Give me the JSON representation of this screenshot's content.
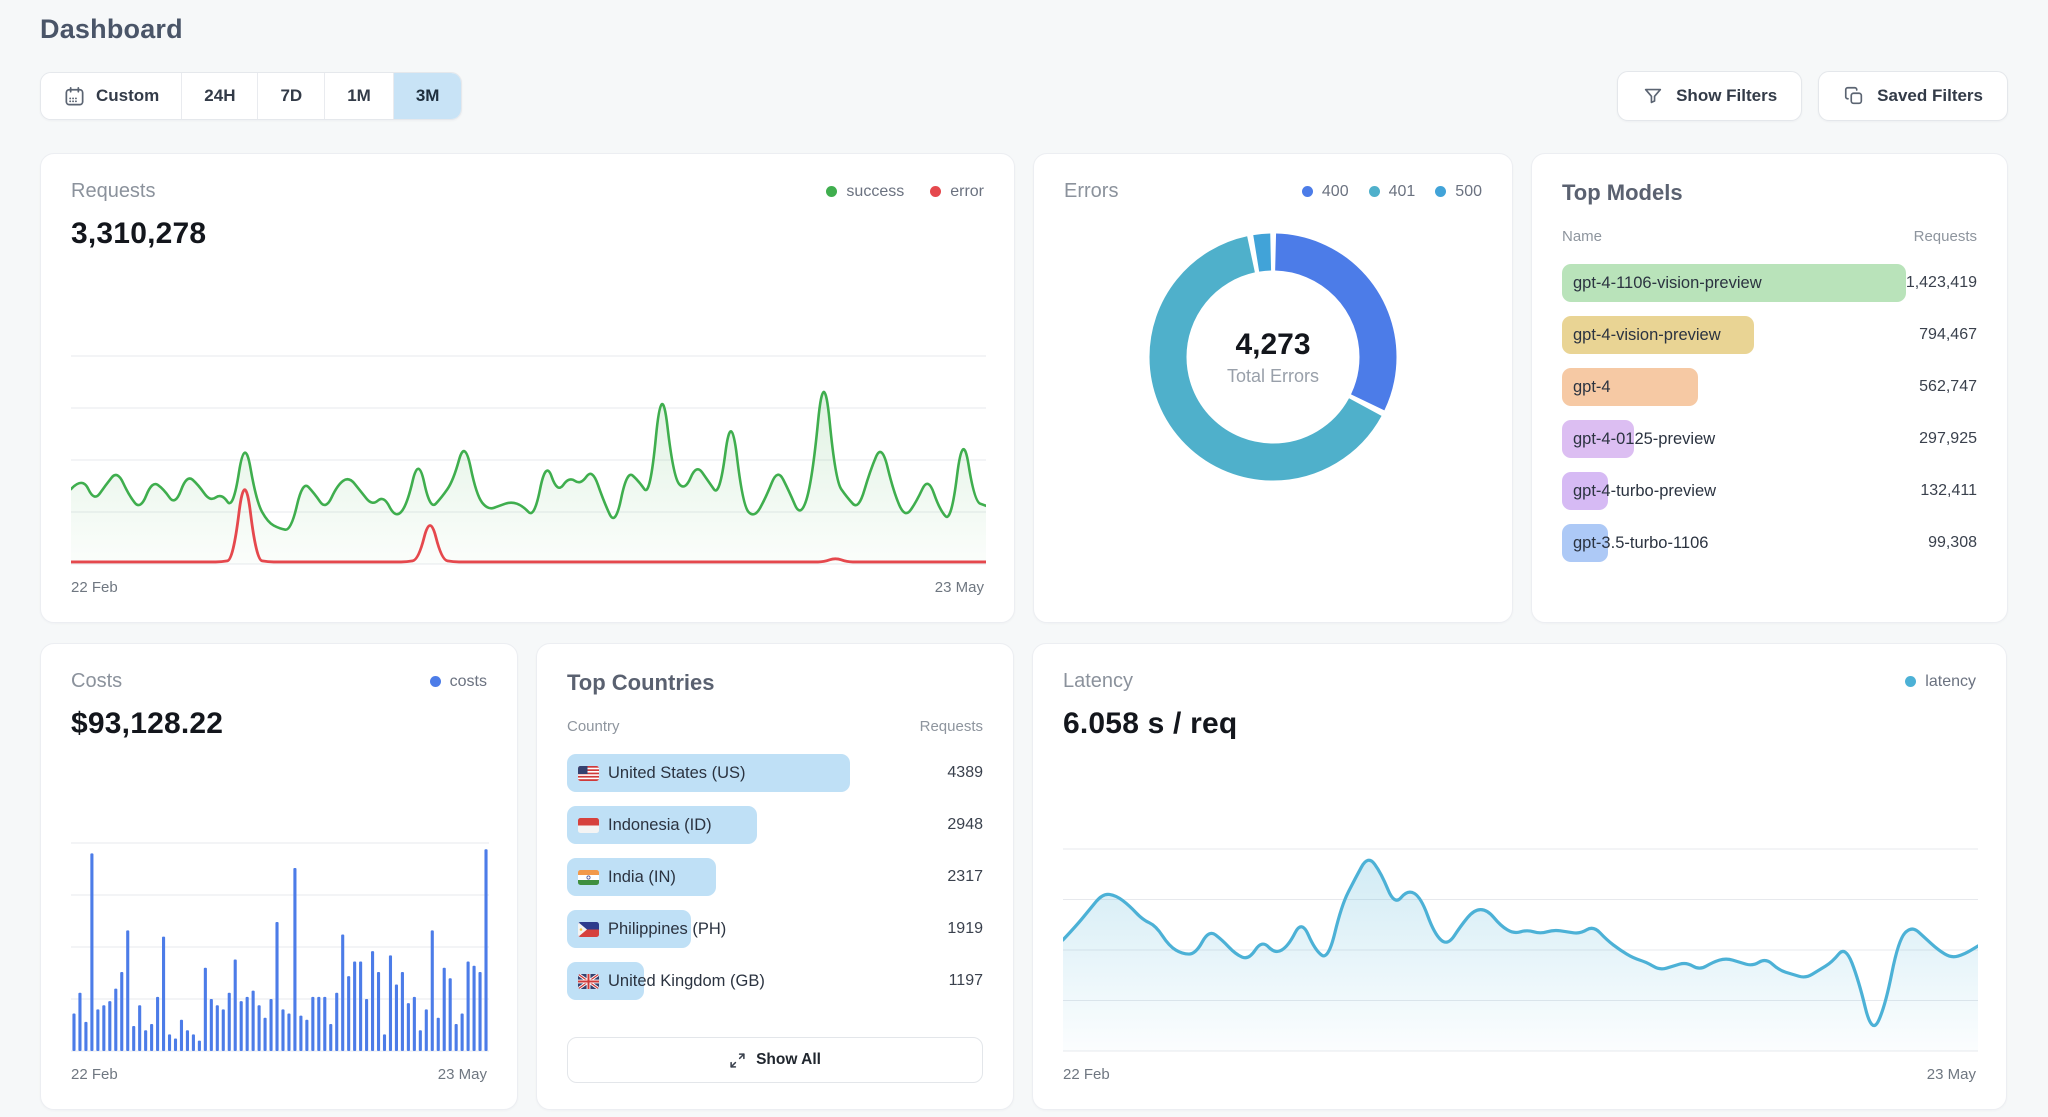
{
  "page": {
    "title": "Dashboard",
    "background": "#f6f8f9"
  },
  "toolbar": {
    "time_filters": [
      {
        "label": "Custom",
        "icon": "calendar-icon",
        "selected": false
      },
      {
        "label": "24H",
        "selected": false
      },
      {
        "label": "7D",
        "selected": false
      },
      {
        "label": "1M",
        "selected": false
      },
      {
        "label": "3M",
        "selected": true
      }
    ],
    "selected_color": "#c8e3f6",
    "show_filters": {
      "label": "Show Filters",
      "icon": "funnel-icon"
    },
    "saved_filters": {
      "label": "Saved Filters",
      "icon": "copy-icon"
    }
  },
  "cards": {
    "requests": {
      "title": "Requests",
      "value": "3,310,278",
      "legend": [
        {
          "label": "success",
          "color": "#3fae4e"
        },
        {
          "label": "error",
          "color": "#e5484d"
        }
      ],
      "x_start": "22 Feb",
      "x_end": "23 May"
    },
    "errors": {
      "title": "Errors",
      "legend": [
        {
          "label": "400",
          "color": "#4c7ce8"
        },
        {
          "label": "401",
          "color": "#4fb0cb"
        },
        {
          "label": "500",
          "color": "#41a3d8"
        }
      ],
      "center_value": "4,273",
      "center_label": "Total Errors"
    },
    "top_models": {
      "title": "Top Models",
      "col_name": "Name",
      "col_requests": "Requests",
      "rows": [
        {
          "name": "gpt-4-1106-vision-preview",
          "requests": "1,423,419",
          "color": "#b9e3ba"
        },
        {
          "name": "gpt-4-vision-preview",
          "requests": "794,467",
          "color": "#e9d494"
        },
        {
          "name": "gpt-4",
          "requests": "562,747",
          "color": "#f6c9a4"
        },
        {
          "name": "gpt-4-0125-preview",
          "requests": "297,925",
          "color": "#dcbef2"
        },
        {
          "name": "gpt-4-turbo-preview",
          "requests": "132,411",
          "color": "#d6baf4"
        },
        {
          "name": "gpt-3.5-turbo-1106",
          "requests": "99,308",
          "color": "#adc9f6"
        }
      ]
    },
    "costs": {
      "title": "Costs",
      "value": "$93,128.22",
      "legend": [
        {
          "label": "costs",
          "color": "#4c7ce8"
        }
      ],
      "x_start": "22 Feb",
      "x_end": "23 May"
    },
    "top_countries": {
      "title": "Top Countries",
      "col_country": "Country",
      "col_requests": "Requests",
      "pill_color": "#bfe0f6",
      "rows": [
        {
          "country": "United States (US)",
          "flag": "us-flag",
          "requests": "4389"
        },
        {
          "country": "Indonesia (ID)",
          "flag": "id-flag",
          "requests": "2948"
        },
        {
          "country": "India (IN)",
          "flag": "in-flag",
          "requests": "2317"
        },
        {
          "country": "Philippines (PH)",
          "flag": "ph-flag",
          "requests": "1919"
        },
        {
          "country": "United Kingdom (GB)",
          "flag": "gb-flag",
          "requests": "1197"
        }
      ],
      "show_all_label": "Show All"
    },
    "latency": {
      "title": "Latency",
      "value": "6.058 s / req",
      "legend": [
        {
          "label": "latency",
          "color": "#4cb1d6"
        }
      ],
      "x_start": "22 Feb",
      "x_end": "23 May"
    }
  },
  "chart_data": {
    "requests": {
      "type": "line",
      "title": "Requests",
      "x_range": [
        "22 Feb",
        "23 May"
      ],
      "ylabel": "",
      "units": "relative height 0-100 (chart shows no y-axis labels)",
      "grid": true,
      "legend_position": "top-right",
      "series": [
        {
          "name": "success",
          "color": "#3fae4e",
          "values": [
            36,
            42,
            30,
            38,
            45,
            33,
            26,
            40,
            36,
            28,
            43,
            38,
            30,
            34,
            26,
            62,
            30,
            20,
            17,
            16,
            40,
            34,
            26,
            38,
            42,
            35,
            28,
            33,
            22,
            28,
            52,
            26,
            32,
            40,
            60,
            33,
            26,
            28,
            30,
            28,
            22,
            50,
            34,
            42,
            38,
            46,
            30,
            18,
            45,
            40,
            32,
            90,
            42,
            35,
            48,
            40,
            32,
            75,
            28,
            22,
            32,
            46,
            35,
            22,
            40,
            97,
            40,
            32,
            26,
            45,
            58,
            35,
            22,
            30,
            42,
            26,
            20,
            65,
            30,
            28
          ]
        },
        {
          "name": "error",
          "color": "#e5484d",
          "values": [
            1,
            1,
            1,
            1,
            1,
            1,
            1,
            1,
            1,
            1,
            1,
            1,
            1,
            1,
            2,
            47,
            2,
            1,
            1,
            1,
            1,
            1,
            1,
            1,
            1,
            1,
            1,
            1,
            1,
            1,
            2,
            24,
            2,
            1,
            1,
            1,
            1,
            1,
            1,
            1,
            1,
            1,
            1,
            1,
            1,
            1,
            1,
            1,
            1,
            1,
            1,
            1,
            1,
            1,
            1,
            1,
            1,
            1,
            1,
            1,
            1,
            1,
            1,
            1,
            1,
            1,
            3,
            1,
            1,
            1,
            1,
            1,
            1,
            1,
            1,
            1,
            1,
            1,
            1,
            1
          ]
        }
      ]
    },
    "errors": {
      "type": "pie",
      "title": "Errors",
      "total": 4273,
      "center_label": "Total Errors",
      "slices": [
        {
          "label": "400",
          "color": "#4c7ce8",
          "percent_est": 32.5
        },
        {
          "label": "401",
          "color": "#4fb0cb",
          "percent_est": 64.5
        },
        {
          "label": "500",
          "color": "#41a3d8",
          "percent_est": 3.0
        }
      ],
      "note": "slice percentages estimated from arc angles; only total 4,273 is labeled on screen"
    },
    "costs": {
      "type": "bar",
      "title": "Costs",
      "x_range": [
        "22 Feb",
        "23 May"
      ],
      "units": "relative height 0-100 (chart shows no y-axis labels)",
      "color": "#4c7ce8",
      "values": [
        18,
        28,
        14,
        95,
        20,
        22,
        24,
        30,
        38,
        58,
        12,
        22,
        10,
        13,
        26,
        55,
        8,
        6,
        15,
        10,
        8,
        5,
        40,
        25,
        22,
        20,
        28,
        44,
        24,
        26,
        29,
        22,
        16,
        25,
        62,
        20,
        18,
        88,
        17,
        15,
        26,
        26,
        26,
        13,
        28,
        56,
        36,
        43,
        43,
        25,
        48,
        38,
        8,
        46,
        32,
        38,
        23,
        26,
        10,
        20,
        58,
        16,
        40,
        35,
        13,
        18,
        43,
        41,
        38,
        97
      ]
    },
    "latency": {
      "type": "line",
      "title": "Latency",
      "x_range": [
        "22 Feb",
        "23 May"
      ],
      "units": "relative height 0-100 (chart shows no y-axis labels)",
      "series": [
        {
          "name": "latency",
          "color": "#4cb1d6",
          "values": [
            55,
            62,
            70,
            78,
            77,
            72,
            65,
            62,
            52,
            48,
            48,
            60,
            55,
            48,
            45,
            55,
            48,
            52,
            65,
            50,
            45,
            72,
            85,
            97,
            88,
            72,
            80,
            76,
            58,
            52,
            62,
            70,
            70,
            62,
            58,
            60,
            58,
            60,
            59,
            58,
            62,
            55,
            50,
            46,
            44,
            40,
            42,
            44,
            40,
            44,
            46,
            44,
            42,
            46,
            40,
            38,
            36,
            40,
            44,
            52,
            35,
            8,
            22,
            55,
            62,
            56,
            50,
            46,
            48,
            52
          ]
        }
      ]
    }
  }
}
